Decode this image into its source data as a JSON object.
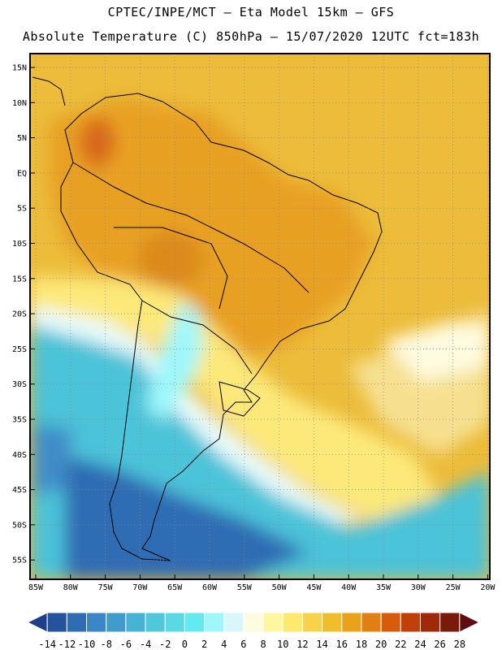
{
  "header": {
    "line1": "CPTEC/INPE/MCT –  Eta Model 15km – GFS",
    "line2": "Absolute Temperature (C) 850hPa – 15/07/2020 12UTC fct=183h"
  },
  "axes": {
    "lat_labels": [
      "15N",
      "10N",
      "5N",
      "EQ",
      "5S",
      "10S",
      "15S",
      "20S",
      "25S",
      "30S",
      "35S",
      "40S",
      "45S",
      "50S",
      "55S"
    ],
    "lon_labels": [
      "85W",
      "80W",
      "75W",
      "70W",
      "65W",
      "60W",
      "55W",
      "50W",
      "45W",
      "40W",
      "35W",
      "30W",
      "25W",
      "20W"
    ]
  },
  "colorbar": {
    "labels": [
      "-14",
      "-12",
      "-10",
      "-8",
      "-6",
      "-4",
      "-2",
      "0",
      "2",
      "4",
      "6",
      "8",
      "10",
      "12",
      "14",
      "16",
      "18",
      "20",
      "22",
      "24",
      "26",
      "28"
    ],
    "colors": [
      "#1f3f8a",
      "#25539e",
      "#2f6cb4",
      "#3a86c6",
      "#3f9ccd",
      "#46b3d4",
      "#50c7da",
      "#5ad8e4",
      "#62eaf0",
      "#9ff7fb",
      "#d9f7fb",
      "#fffbe0",
      "#fff6a0",
      "#fde96e",
      "#f6d34a",
      "#f0bd2c",
      "#e9a21a",
      "#e07f12",
      "#d65c0c",
      "#c1400a",
      "#9e2a0a",
      "#7a1a0a",
      "#5e0e12"
    ]
  },
  "map": {
    "grid": true,
    "projection": "lat-lon",
    "lat_range": [
      "56S",
      "17N"
    ],
    "lon_range": [
      "86W",
      "20W"
    ]
  }
}
